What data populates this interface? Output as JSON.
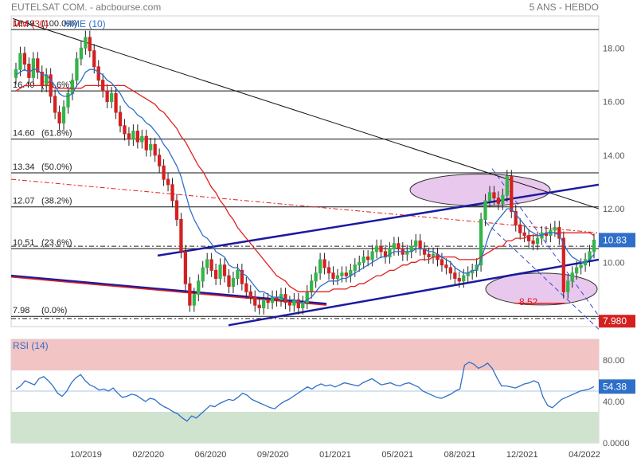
{
  "header": {
    "title": "EUTELSAT COM. - abcbourse.com",
    "period": "5 ANS - HEBDO"
  },
  "legend": {
    "ma_label": "MM (30)",
    "ema_label": "MME (10)",
    "rsi_label": "RSI (14)"
  },
  "colors": {
    "up": "#33b54a",
    "down": "#d42020",
    "ma": "#e02020",
    "ema": "#2f6fc9",
    "trend": "#1a1aa0",
    "rsi_line": "#2f6fc9",
    "overbought_zone": "#f2c4c4",
    "oversold_zone": "#cfe3cf",
    "ellipse_fill": "#e8c8ec"
  },
  "badges": {
    "last_price": "10.83",
    "low_price": "7.980",
    "rsi_value": "54.38",
    "low_annotation": "8.52"
  },
  "chart_data": [
    {
      "type": "candlestick",
      "title": "EUTELSAT COM.",
      "ylim": [
        7.6,
        19.2
      ],
      "y_ticks": [
        "10.00",
        "12.00",
        "14.00",
        "16.00",
        "18.00"
      ],
      "x_tick_labels": [
        "10/2019",
        "02/2020",
        "06/2020",
        "09/2020",
        "01/2021",
        "05/2021",
        "08/2021",
        "12/2021",
        "04/2022"
      ],
      "fibonacci_levels": [
        {
          "value": 18.69,
          "label": "18.69",
          "pct": "(100.0%)"
        },
        {
          "value": 16.4,
          "label": "16.40",
          "pct": "(78.6%)"
        },
        {
          "value": 14.6,
          "label": "14.60",
          "pct": "(61.8%)"
        },
        {
          "value": 13.34,
          "label": "13.34",
          "pct": "(50.0%)"
        },
        {
          "value": 12.07,
          "label": "12.07",
          "pct": "(38.2%)"
        },
        {
          "value": 10.51,
          "label": "10.51",
          "pct": "(23.6%)"
        },
        {
          "value": 7.98,
          "label": "7.98",
          "pct": "(0.0%)"
        }
      ],
      "closes": [
        17.2,
        17.8,
        17.4,
        16.9,
        17.6,
        17.1,
        16.6,
        17.0,
        16.2,
        15.6,
        15.2,
        15.8,
        16.3,
        16.8,
        17.6,
        18.0,
        18.4,
        17.9,
        17.3,
        16.8,
        16.4,
        16.0,
        16.3,
        15.6,
        15.1,
        14.8,
        14.6,
        14.9,
        14.5,
        14.7,
        14.2,
        14.4,
        14.0,
        13.6,
        13.1,
        12.9,
        12.3,
        11.6,
        10.4,
        9.2,
        8.4,
        8.8,
        9.3,
        9.8,
        10.1,
        9.7,
        9.4,
        9.9,
        9.5,
        9.1,
        9.4,
        9.7,
        9.2,
        8.9,
        8.7,
        8.4,
        8.3,
        8.6,
        8.5,
        8.7,
        8.6,
        8.8,
        8.5,
        8.4,
        8.6,
        8.3,
        8.5,
        8.9,
        9.3,
        9.6,
        10.1,
        9.8,
        9.6,
        9.4,
        9.5,
        9.6,
        9.5,
        9.7,
        9.9,
        10.0,
        10.2,
        10.1,
        10.4,
        10.6,
        10.4,
        10.2,
        10.5,
        10.7,
        10.5,
        10.3,
        10.4,
        10.6,
        10.8,
        10.5,
        10.3,
        10.2,
        10.3,
        10.1,
        9.9,
        9.8,
        9.6,
        9.4,
        9.3,
        9.5,
        9.6,
        9.7,
        9.9,
        11.6,
        12.3,
        12.6,
        12.4,
        12.2,
        12.5,
        13.2,
        11.9,
        11.4,
        11.1,
        11.0,
        10.8,
        10.7,
        10.9,
        11.1,
        11.0,
        11.2,
        11.3,
        10.9,
        8.9,
        9.3,
        9.6,
        9.8,
        9.9,
        10.1,
        10.4,
        10.83
      ],
      "series": [
        {
          "name": "MM (30)",
          "values": [
            16.4,
            16.5,
            16.6,
            16.6,
            16.6,
            16.6,
            16.6,
            16.6,
            16.6,
            16.5,
            16.5,
            16.5,
            16.5,
            16.5,
            16.5,
            16.5,
            16.6,
            16.6,
            16.6,
            16.6,
            16.6,
            16.6,
            16.6,
            16.6,
            16.6,
            16.6,
            16.5,
            16.4,
            16.3,
            16.2,
            16.1,
            16.0,
            15.9,
            15.7,
            15.6,
            15.4,
            15.2,
            15.0,
            14.7,
            14.5,
            14.2,
            13.9,
            13.6,
            13.4,
            13.1,
            12.8,
            12.6,
            12.3,
            12.1,
            11.8,
            11.6,
            11.3,
            11.1,
            10.9,
            10.7,
            10.5,
            10.3,
            10.1,
            9.9,
            9.7,
            9.5,
            9.4,
            9.3,
            9.1,
            9.0,
            8.9,
            8.9,
            8.9,
            8.9,
            8.9,
            8.9,
            8.9,
            8.9,
            9.0,
            9.0,
            9.0,
            9.0,
            9.1,
            9.1,
            9.2,
            9.2,
            9.3,
            9.4,
            9.5,
            9.5,
            9.6,
            9.7,
            9.7,
            9.8,
            9.9,
            9.9,
            10.0,
            10.0,
            10.1,
            10.1,
            10.1,
            10.2,
            10.2,
            10.2,
            10.2,
            10.2,
            10.2,
            10.1,
            10.1,
            10.1,
            10.1,
            10.1,
            10.2,
            10.3,
            10.4,
            10.5,
            10.6,
            10.6,
            10.8,
            10.8,
            10.9,
            10.9,
            10.9,
            11.0,
            11.0,
            11.0,
            11.0,
            11.1,
            11.1,
            11.1,
            11.1,
            11.1,
            11.1,
            11.1,
            11.1,
            11.1,
            11.1,
            11.1,
            11.0
          ]
        },
        {
          "name": "MME (10)",
          "values": [
            17.0,
            17.1,
            17.2,
            17.1,
            17.2,
            17.2,
            17.0,
            17.0,
            16.8,
            16.6,
            16.3,
            16.2,
            16.2,
            16.3,
            16.6,
            16.8,
            17.1,
            17.2,
            17.2,
            17.1,
            17.0,
            16.8,
            16.7,
            16.5,
            16.3,
            16.0,
            15.8,
            15.7,
            15.5,
            15.4,
            15.2,
            15.1,
            14.9,
            14.7,
            14.4,
            14.2,
            13.9,
            13.6,
            13.2,
            12.6,
            12.0,
            11.6,
            11.3,
            11.0,
            10.9,
            10.7,
            10.4,
            10.3,
            10.2,
            9.9,
            9.8,
            9.8,
            9.6,
            9.5,
            9.3,
            9.1,
            8.9,
            8.9,
            8.8,
            8.7,
            8.7,
            8.7,
            8.6,
            8.6,
            8.6,
            8.5,
            8.5,
            8.6,
            8.7,
            8.9,
            9.1,
            9.2,
            9.3,
            9.3,
            9.3,
            9.4,
            9.4,
            9.5,
            9.6,
            9.7,
            9.8,
            9.9,
            10.0,
            10.1,
            10.2,
            10.2,
            10.3,
            10.4,
            10.4,
            10.4,
            10.4,
            10.4,
            10.5,
            10.5,
            10.5,
            10.4,
            10.4,
            10.3,
            10.2,
            10.1,
            10.0,
            9.8,
            9.7,
            9.6,
            9.6,
            9.7,
            9.7,
            10.1,
            10.6,
            11.1,
            11.4,
            11.6,
            11.8,
            12.0,
            12.0,
            11.8,
            11.6,
            11.4,
            11.2,
            11.1,
            11.0,
            11.0,
            11.1,
            11.1,
            11.1,
            11.0,
            10.7,
            10.4,
            10.2,
            10.1,
            10.0,
            10.0,
            10.1,
            10.3
          ]
        }
      ]
    },
    {
      "type": "line",
      "title": "RSI (14)",
      "ylim": [
        0,
        100
      ],
      "y_ticks": [
        "0.0000",
        "40.00",
        "80.00"
      ],
      "zones": {
        "overbought": [
          70,
          100
        ],
        "oversold": [
          0,
          30
        ]
      },
      "series": [
        {
          "name": "RSI (14)",
          "values": [
            52,
            55,
            60,
            58,
            56,
            62,
            64,
            60,
            55,
            48,
            45,
            50,
            58,
            63,
            66,
            60,
            56,
            54,
            51,
            52,
            50,
            53,
            48,
            44,
            45,
            47,
            46,
            43,
            40,
            43,
            42,
            38,
            35,
            33,
            30,
            28,
            24,
            21,
            26,
            24,
            28,
            32,
            36,
            35,
            38,
            40,
            42,
            41,
            44,
            48,
            46,
            42,
            40,
            38,
            36,
            34,
            33,
            37,
            40,
            42,
            45,
            48,
            51,
            54,
            52,
            55,
            57,
            55,
            56,
            54,
            56,
            58,
            57,
            56,
            55,
            58,
            60,
            62,
            59,
            56,
            57,
            58,
            56,
            55,
            57,
            58,
            56,
            54,
            50,
            48,
            46,
            44,
            43,
            45,
            47,
            50,
            52,
            75,
            78,
            76,
            72,
            74,
            77,
            72,
            63,
            55,
            55,
            54,
            53,
            55,
            57,
            58,
            60,
            58,
            44,
            36,
            34,
            38,
            42,
            44,
            46,
            48,
            50,
            51,
            52,
            54.38
          ]
        }
      ]
    }
  ]
}
